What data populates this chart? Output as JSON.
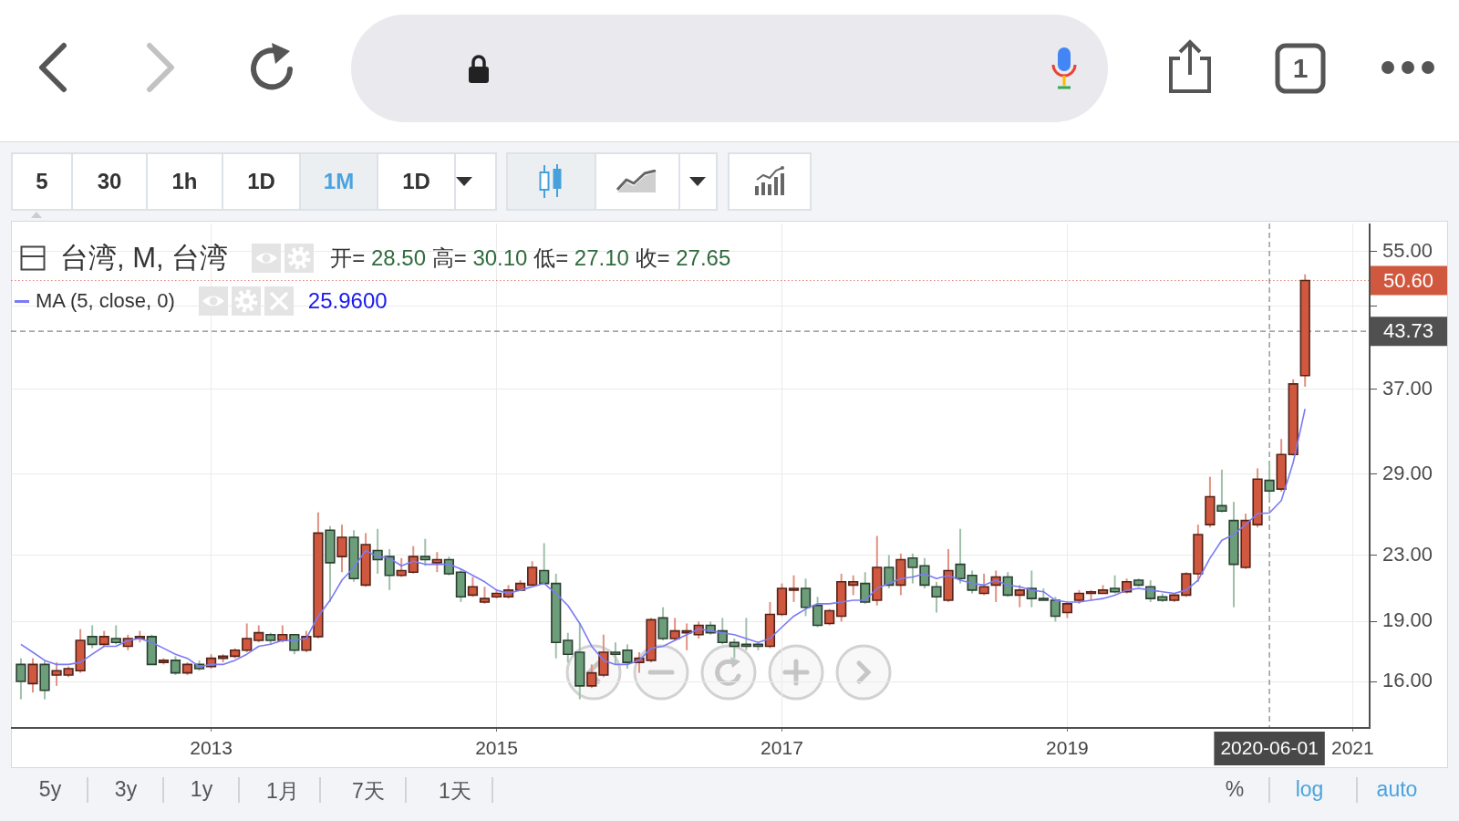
{
  "chart_data": {
    "type": "candlestick",
    "title": "台湾, M, 台湾",
    "x": [
      "2011-09",
      "2011-10",
      "2011-11",
      "2011-12",
      "2012-01",
      "2012-02",
      "2012-03",
      "2012-04",
      "2012-05",
      "2012-06",
      "2012-07",
      "2012-08",
      "2012-09",
      "2012-10",
      "2012-11",
      "2012-12",
      "2013-01",
      "2013-02",
      "2013-03",
      "2013-04",
      "2013-05",
      "2013-06",
      "2013-07",
      "2013-08",
      "2013-09",
      "2013-10",
      "2013-11",
      "2013-12",
      "2014-01",
      "2014-02",
      "2014-03",
      "2014-04",
      "2014-05",
      "2014-06",
      "2014-07",
      "2014-08",
      "2014-09",
      "2014-10",
      "2014-11",
      "2014-12",
      "2015-01",
      "2015-02",
      "2015-03",
      "2015-04",
      "2015-05",
      "2015-06",
      "2015-07",
      "2015-08",
      "2015-09",
      "2015-10",
      "2015-11",
      "2015-12",
      "2016-01",
      "2016-02",
      "2016-03",
      "2016-04",
      "2016-05",
      "2016-06",
      "2016-07",
      "2016-08",
      "2016-09",
      "2016-10",
      "2016-11",
      "2016-12",
      "2017-01",
      "2017-02",
      "2017-03",
      "2017-04",
      "2017-05",
      "2017-06",
      "2017-07",
      "2017-08",
      "2017-09",
      "2017-10",
      "2017-11",
      "2017-12",
      "2018-01",
      "2018-02",
      "2018-03",
      "2018-04",
      "2018-05",
      "2018-06",
      "2018-07",
      "2018-08",
      "2018-09",
      "2018-10",
      "2018-11",
      "2018-12",
      "2019-01",
      "2019-02",
      "2019-03",
      "2019-04",
      "2019-05",
      "2019-06",
      "2019-07",
      "2019-08",
      "2019-09",
      "2019-10",
      "2019-11",
      "2019-12",
      "2020-01",
      "2020-02",
      "2020-03",
      "2020-04",
      "2020-05",
      "2020-06",
      "2020-07",
      "2020-08",
      "2020-09"
    ],
    "ohlc": [
      [
        16.8,
        17.1,
        15.2,
        16.0
      ],
      [
        15.9,
        17.1,
        15.5,
        16.8
      ],
      [
        16.8,
        17.0,
        15.2,
        15.6
      ],
      [
        16.3,
        16.9,
        15.8,
        16.5
      ],
      [
        16.3,
        16.7,
        16.2,
        16.6
      ],
      [
        16.5,
        18.6,
        16.4,
        18.0
      ],
      [
        18.2,
        18.8,
        17.6,
        17.8
      ],
      [
        17.8,
        18.5,
        17.7,
        18.2
      ],
      [
        18.1,
        18.8,
        17.8,
        17.9
      ],
      [
        17.7,
        18.3,
        17.5,
        18.1
      ],
      [
        18.1,
        18.5,
        17.9,
        18.2
      ],
      [
        18.2,
        18.3,
        16.8,
        16.8
      ],
      [
        16.9,
        17.1,
        16.8,
        17.0
      ],
      [
        17.0,
        17.2,
        16.3,
        16.4
      ],
      [
        16.4,
        16.9,
        16.3,
        16.8
      ],
      [
        16.8,
        17.0,
        16.5,
        16.6
      ],
      [
        16.7,
        17.3,
        16.6,
        17.1
      ],
      [
        17.1,
        17.3,
        16.9,
        17.2
      ],
      [
        17.2,
        17.6,
        17.1,
        17.5
      ],
      [
        17.5,
        18.9,
        17.4,
        18.1
      ],
      [
        18.0,
        18.8,
        17.9,
        18.4
      ],
      [
        18.3,
        18.4,
        17.8,
        18.0
      ],
      [
        18.0,
        18.8,
        17.9,
        18.3
      ],
      [
        18.3,
        18.3,
        17.3,
        17.5
      ],
      [
        17.5,
        18.5,
        17.4,
        18.2
      ],
      [
        18.2,
        26.0,
        18.1,
        24.5
      ],
      [
        24.7,
        25.0,
        20.1,
        22.5
      ],
      [
        22.9,
        25.1,
        21.9,
        24.2
      ],
      [
        24.2,
        24.7,
        21.3,
        21.5
      ],
      [
        21.1,
        24.5,
        21.0,
        23.7
      ],
      [
        23.3,
        24.8,
        21.8,
        22.7
      ],
      [
        22.9,
        23.4,
        20.8,
        21.7
      ],
      [
        21.7,
        22.8,
        21.6,
        22.0
      ],
      [
        21.9,
        23.6,
        21.8,
        22.9
      ],
      [
        22.9,
        24.1,
        22.3,
        22.7
      ],
      [
        22.5,
        23.2,
        21.9,
        22.7
      ],
      [
        22.7,
        22.9,
        21.7,
        21.8
      ],
      [
        21.9,
        22.1,
        20.1,
        20.4
      ],
      [
        20.5,
        21.6,
        20.4,
        21.0
      ],
      [
        20.1,
        21.0,
        20.0,
        20.3
      ],
      [
        20.4,
        20.8,
        20.3,
        20.6
      ],
      [
        20.4,
        21.1,
        20.3,
        20.8
      ],
      [
        20.8,
        21.4,
        20.8,
        21.2
      ],
      [
        21.1,
        22.6,
        21.1,
        22.2
      ],
      [
        22.0,
        23.8,
        21.2,
        21.2
      ],
      [
        21.2,
        21.8,
        17.1,
        17.9
      ],
      [
        18.0,
        18.4,
        16.9,
        17.3
      ],
      [
        17.4,
        18.9,
        15.2,
        15.8
      ],
      [
        15.8,
        16.8,
        15.7,
        16.4
      ],
      [
        16.3,
        18.3,
        16.2,
        17.4
      ],
      [
        17.4,
        17.9,
        16.8,
        17.3
      ],
      [
        17.5,
        17.8,
        16.6,
        16.9
      ],
      [
        16.9,
        17.4,
        16.4,
        17.1
      ],
      [
        17.0,
        19.2,
        16.9,
        19.1
      ],
      [
        19.2,
        19.8,
        18.0,
        18.1
      ],
      [
        18.1,
        19.2,
        18.0,
        18.5
      ],
      [
        18.4,
        18.9,
        17.5,
        18.5
      ],
      [
        18.3,
        19.0,
        18.1,
        18.8
      ],
      [
        18.8,
        19.0,
        18.3,
        18.4
      ],
      [
        18.5,
        19.2,
        17.8,
        17.9
      ],
      [
        17.9,
        18.1,
        17.1,
        17.7
      ],
      [
        17.8,
        19.2,
        17.5,
        17.7
      ],
      [
        17.8,
        17.9,
        17.5,
        17.7
      ],
      [
        17.7,
        20.1,
        17.6,
        19.4
      ],
      [
        19.4,
        21.2,
        19.3,
        20.9
      ],
      [
        20.8,
        21.7,
        20.1,
        20.9
      ],
      [
        20.9,
        21.5,
        19.3,
        19.8
      ],
      [
        19.9,
        20.4,
        18.7,
        18.8
      ],
      [
        18.9,
        19.7,
        18.8,
        19.6
      ],
      [
        19.3,
        21.8,
        19.0,
        21.3
      ],
      [
        21.1,
        21.7,
        20.5,
        21.3
      ],
      [
        21.2,
        21.9,
        20.0,
        20.1
      ],
      [
        20.2,
        24.3,
        19.9,
        22.2
      ],
      [
        22.2,
        23.0,
        20.9,
        21.1
      ],
      [
        21.1,
        23.1,
        20.5,
        22.7
      ],
      [
        22.8,
        23.1,
        21.2,
        22.2
      ],
      [
        22.3,
        22.8,
        20.9,
        21.1
      ],
      [
        21.0,
        21.3,
        19.5,
        20.4
      ],
      [
        20.2,
        23.4,
        20.1,
        22.0
      ],
      [
        22.4,
        24.8,
        21.2,
        21.5
      ],
      [
        21.7,
        22.0,
        20.6,
        20.8
      ],
      [
        20.6,
        21.8,
        20.5,
        21.0
      ],
      [
        21.1,
        22.0,
        20.1,
        21.6
      ],
      [
        21.6,
        21.9,
        20.4,
        20.5
      ],
      [
        20.5,
        21.1,
        19.8,
        20.8
      ],
      [
        20.9,
        22.0,
        19.8,
        20.3
      ],
      [
        20.3,
        20.9,
        20.2,
        20.2
      ],
      [
        20.2,
        20.4,
        19.0,
        19.3
      ],
      [
        19.5,
        20.1,
        19.2,
        20.0
      ],
      [
        20.2,
        20.8,
        20.0,
        20.6
      ],
      [
        20.6,
        20.8,
        20.2,
        20.7
      ],
      [
        20.6,
        21.1,
        20.6,
        20.8
      ],
      [
        20.9,
        21.7,
        20.6,
        20.7
      ],
      [
        20.7,
        21.5,
        20.6,
        21.3
      ],
      [
        21.4,
        21.5,
        21.0,
        21.1
      ],
      [
        21.0,
        21.4,
        20.1,
        20.3
      ],
      [
        20.4,
        20.6,
        20.1,
        20.2
      ],
      [
        20.2,
        20.6,
        20.1,
        20.5
      ],
      [
        20.5,
        21.9,
        20.4,
        21.8
      ],
      [
        21.8,
        25.1,
        21.3,
        24.4
      ],
      [
        25.1,
        28.8,
        24.9,
        27.2
      ],
      [
        26.5,
        29.4,
        26.0,
        26.1
      ],
      [
        25.4,
        26.8,
        19.8,
        22.4
      ],
      [
        22.2,
        25.9,
        22.1,
        25.4
      ],
      [
        25.1,
        29.5,
        24.9,
        28.6
      ],
      [
        28.5,
        30.1,
        27.1,
        27.65
      ],
      [
        27.8,
        32.1,
        27.6,
        30.7
      ],
      [
        30.7,
        38.1,
        30.6,
        37.6
      ],
      [
        38.5,
        51.5,
        37.3,
        50.6
      ]
    ],
    "colors": [
      "#6c9e7a",
      "#d0583f",
      "#6c9e7a",
      "#d0583f",
      "#d0583f",
      "#d0583f",
      "#6c9e7a",
      "#d0583f",
      "#6c9e7a",
      "#d0583f",
      "#d0583f",
      "#6c9e7a",
      "#d0583f",
      "#6c9e7a",
      "#d0583f",
      "#6c9e7a",
      "#d0583f",
      "#d0583f",
      "#d0583f",
      "#d0583f",
      "#d0583f",
      "#6c9e7a",
      "#d0583f",
      "#6c9e7a",
      "#d0583f",
      "#d0583f",
      "#6c9e7a",
      "#d0583f",
      "#6c9e7a",
      "#d0583f",
      "#6c9e7a",
      "#6c9e7a",
      "#d0583f",
      "#d0583f",
      "#6c9e7a",
      "#d0583f",
      "#6c9e7a",
      "#6c9e7a",
      "#d0583f",
      "#d0583f",
      "#d0583f",
      "#d0583f",
      "#d0583f",
      "#d0583f",
      "#6c9e7a",
      "#6c9e7a",
      "#6c9e7a",
      "#6c9e7a",
      "#d0583f",
      "#d0583f",
      "#6c9e7a",
      "#6c9e7a",
      "#d0583f",
      "#d0583f",
      "#6c9e7a",
      "#d0583f",
      "#d0583f",
      "#d0583f",
      "#6c9e7a",
      "#6c9e7a",
      "#6c9e7a",
      "#6c9e7a",
      "#6c9e7a",
      "#d0583f",
      "#d0583f",
      "#d0583f",
      "#6c9e7a",
      "#6c9e7a",
      "#d0583f",
      "#d0583f",
      "#d0583f",
      "#6c9e7a",
      "#d0583f",
      "#6c9e7a",
      "#d0583f",
      "#6c9e7a",
      "#6c9e7a",
      "#6c9e7a",
      "#d0583f",
      "#6c9e7a",
      "#6c9e7a",
      "#d0583f",
      "#d0583f",
      "#6c9e7a",
      "#d0583f",
      "#6c9e7a",
      "#6c9e7a",
      "#6c9e7a",
      "#d0583f",
      "#d0583f",
      "#d0583f",
      "#d0583f",
      "#6c9e7a",
      "#d0583f",
      "#6c9e7a",
      "#6c9e7a",
      "#6c9e7a",
      "#d0583f",
      "#d0583f",
      "#d0583f",
      "#d0583f",
      "#6c9e7a",
      "#6c9e7a",
      "#d0583f",
      "#d0583f",
      "#6c9e7a",
      "#d0583f",
      "#d0583f",
      "#d0583f"
    ],
    "series": [
      {
        "type": "line",
        "name": "MA (5, close, 0)",
        "color": "#7a7af5",
        "values": [
          17.8,
          17.4,
          17.0,
          16.8,
          16.8,
          16.9,
          17.3,
          17.7,
          17.7,
          18.0,
          18.1,
          17.9,
          17.6,
          17.3,
          17.1,
          16.7,
          16.8,
          16.8,
          17.0,
          17.3,
          17.7,
          17.8,
          18.0,
          18.0,
          18.1,
          19.3,
          20.2,
          21.4,
          22.2,
          23.3,
          22.9,
          22.8,
          22.3,
          22.6,
          22.4,
          22.4,
          22.4,
          22.1,
          21.7,
          21.3,
          20.8,
          20.6,
          20.8,
          21.0,
          21.2,
          20.6,
          19.9,
          18.9,
          17.7,
          17.0,
          16.8,
          16.8,
          17.0,
          17.6,
          17.7,
          18.0,
          18.3,
          18.6,
          18.5,
          18.4,
          18.3,
          18.1,
          17.9,
          18.1,
          18.7,
          19.3,
          19.7,
          20.0,
          20.0,
          20.1,
          20.2,
          20.2,
          20.9,
          21.2,
          21.5,
          21.6,
          21.8,
          21.5,
          21.7,
          21.4,
          21.2,
          21.1,
          21.4,
          21.1,
          21.0,
          20.8,
          20.7,
          20.2,
          20.1,
          20.1,
          20.2,
          20.3,
          20.5,
          20.8,
          20.9,
          20.8,
          20.7,
          20.6,
          20.8,
          21.4,
          22.8,
          24.0,
          24.4,
          25.1,
          25.9,
          25.96,
          26.9,
          30.0,
          35.0
        ]
      }
    ],
    "xlim": [
      "2011-08-06",
      "2021-02-13"
    ],
    "xticks": [
      "2013",
      "2015",
      "2017",
      "2019",
      "2021"
    ],
    "ylim": [
      14.0,
      59.6
    ],
    "yticks": [
      {
        "value": 16,
        "label": "16.00"
      },
      {
        "value": 19,
        "label": "19.00"
      },
      {
        "value": 23,
        "label": "23.00"
      },
      {
        "value": 29,
        "label": "29.00"
      },
      {
        "value": 37,
        "label": "37.00"
      },
      {
        "value": 47,
        "label": null
      },
      {
        "value": 55,
        "label": "55.00"
      }
    ],
    "log": true,
    "grid": true,
    "legend": "top left",
    "ref_lines": [
      {
        "axis": "y",
        "value": 50.6,
        "label": "50.60",
        "color": "#d0583f",
        "line_style": "dotted"
      },
      {
        "axis": "y",
        "value": 43.73,
        "label": "43.73",
        "color": "#505050",
        "line_style": "dashed"
      },
      {
        "axis": "x",
        "value": "2020-06-01",
        "label": "2020-06-01",
        "color": "#484848",
        "line_style": "dashed"
      }
    ],
    "annotations": [
      "开= 28.50 高= 30.10 低= 27.10 收= 27.65",
      "25.9600",
      "1",
      "5",
      "30",
      "1h",
      "1D",
      "1M",
      "1D",
      "5y",
      "3y",
      "1y",
      "1月",
      "7天",
      "1天",
      "%",
      "log",
      "auto"
    ]
  }
}
